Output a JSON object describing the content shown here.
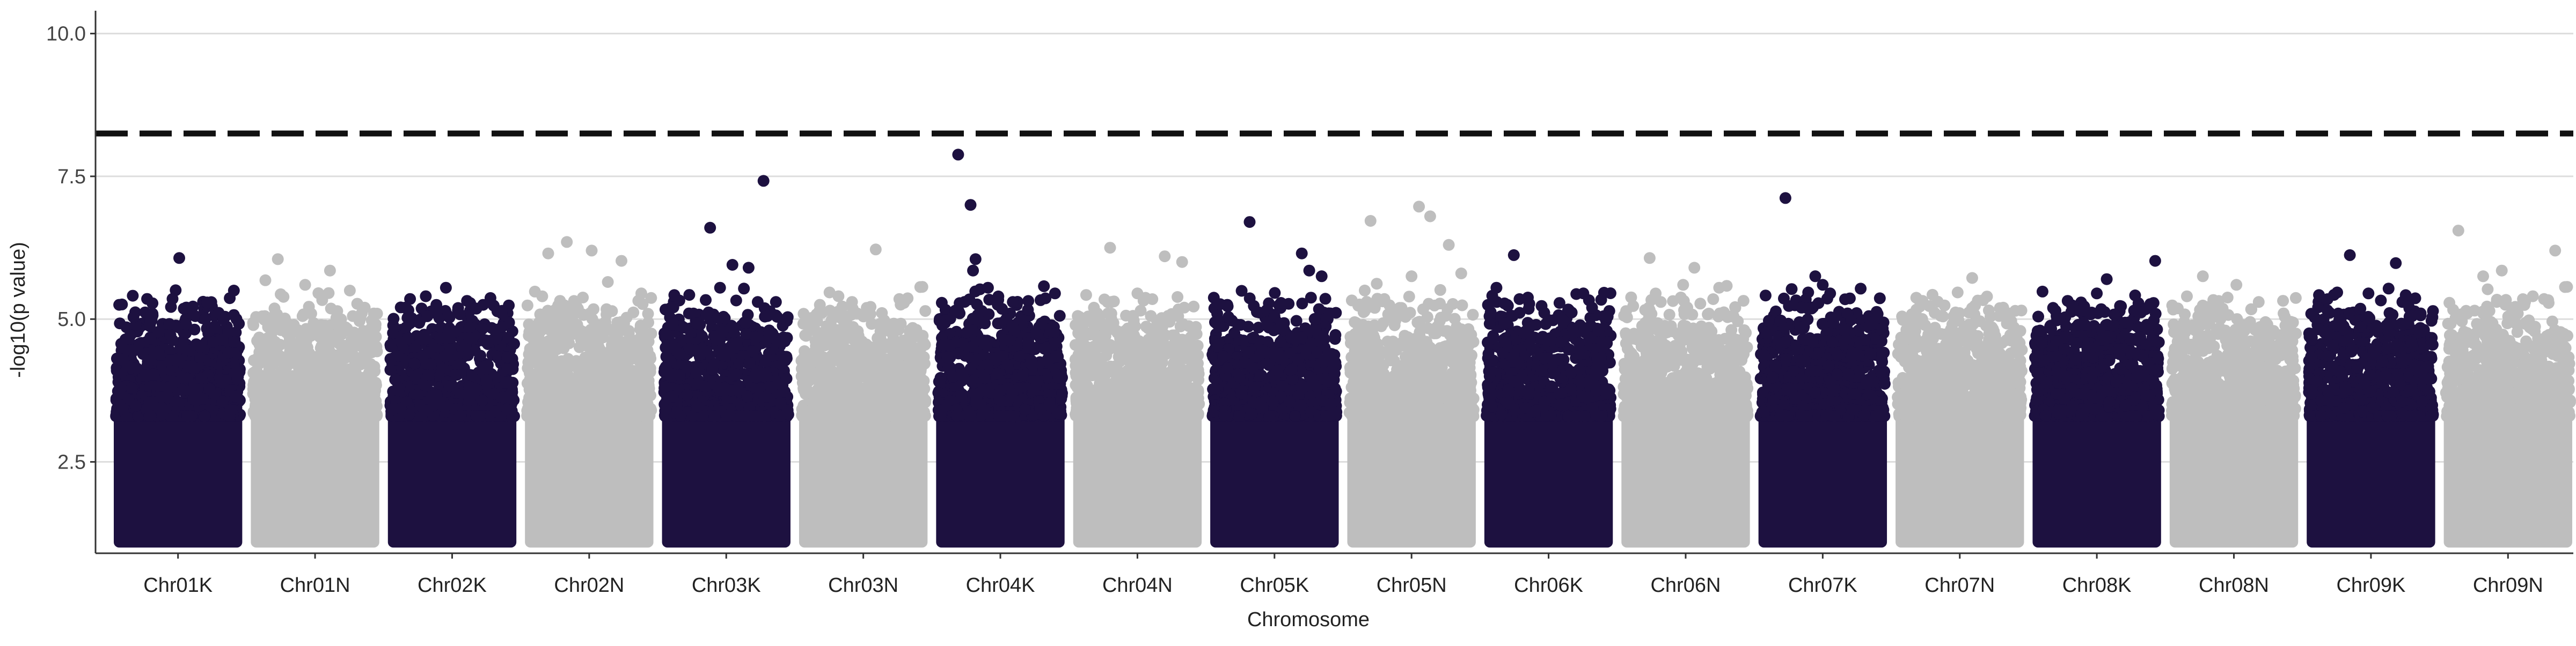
{
  "chart_data": {
    "type": "scatter",
    "subtype": "manhattan",
    "xlabel": "Chromosome",
    "ylabel": "-log10(p value)",
    "ylim": [
      0.9,
      10.4
    ],
    "y_ticks": [
      2.5,
      5.0,
      7.5,
      10.0
    ],
    "y_tick_labels": [
      "2.5",
      "5.0",
      "7.5",
      "10.0"
    ],
    "grid": "horizontal major lines only",
    "threshold": 8.25,
    "threshold_style": "dashed",
    "colors": {
      "odd": "#1d1140",
      "even": "#bebebe",
      "threshold": "#111111",
      "grid": "#dddddd"
    },
    "series": [
      {
        "name": "Chr01K",
        "color_group": "odd",
        "peak": 6.07,
        "top_points": [
          [
            0.51,
            6.07
          ],
          [
            0.28,
            4.95
          ],
          [
            0.62,
            5.22
          ],
          [
            0.95,
            5.5
          ],
          [
            0.72,
            5.0
          ],
          [
            0.8,
            4.85
          ]
        ]
      },
      {
        "name": "Chr01N",
        "color_group": "even",
        "peak": 6.05,
        "top_points": [
          [
            0.2,
            6.05
          ],
          [
            0.62,
            5.85
          ],
          [
            0.1,
            5.68
          ],
          [
            0.42,
            5.6
          ],
          [
            0.78,
            5.5
          ],
          [
            0.9,
            5.2
          ]
        ]
      },
      {
        "name": "Chr02K",
        "color_group": "odd",
        "peak": 5.55,
        "top_points": [
          [
            0.45,
            5.55
          ],
          [
            0.62,
            5.32
          ],
          [
            0.75,
            5.25
          ],
          [
            0.12,
            5.2
          ],
          [
            0.3,
            5.05
          ],
          [
            0.9,
            5.1
          ]
        ]
      },
      {
        "name": "Chr02N",
        "color_group": "even",
        "peak": 6.35,
        "top_points": [
          [
            0.32,
            6.35
          ],
          [
            0.52,
            6.2
          ],
          [
            0.17,
            6.15
          ],
          [
            0.76,
            6.02
          ],
          [
            0.65,
            5.65
          ],
          [
            0.92,
            5.45
          ]
        ]
      },
      {
        "name": "Chr03K",
        "color_group": "odd",
        "peak": 7.42,
        "top_points": [
          [
            0.8,
            7.42
          ],
          [
            0.37,
            6.6
          ],
          [
            0.55,
            5.95
          ],
          [
            0.68,
            5.9
          ],
          [
            0.45,
            5.55
          ],
          [
            0.2,
            5.1
          ],
          [
            0.9,
            5.3
          ]
        ]
      },
      {
        "name": "Chr03N",
        "color_group": "even",
        "peak": 6.22,
        "top_points": [
          [
            0.6,
            6.22
          ],
          [
            0.3,
            5.4
          ],
          [
            0.15,
            5.25
          ],
          [
            0.85,
            5.35
          ],
          [
            0.45,
            5.1
          ]
        ]
      },
      {
        "name": "Chr04K",
        "color_group": "odd",
        "peak": 7.88,
        "top_points": [
          [
            0.16,
            7.88
          ],
          [
            0.26,
            7.0
          ],
          [
            0.3,
            6.05
          ],
          [
            0.28,
            5.85
          ],
          [
            0.4,
            5.55
          ],
          [
            0.6,
            5.3
          ],
          [
            0.94,
            5.45
          ]
        ]
      },
      {
        "name": "Chr04N",
        "color_group": "even",
        "peak": 6.25,
        "top_points": [
          [
            0.28,
            6.25
          ],
          [
            0.72,
            6.1
          ],
          [
            0.86,
            6.0
          ],
          [
            0.5,
            5.45
          ],
          [
            0.15,
            5.2
          ],
          [
            0.62,
            5.35
          ]
        ]
      },
      {
        "name": "Chr05K",
        "color_group": "odd",
        "peak": 6.7,
        "top_points": [
          [
            0.3,
            6.7
          ],
          [
            0.72,
            6.15
          ],
          [
            0.78,
            5.85
          ],
          [
            0.88,
            5.75
          ],
          [
            0.12,
            5.25
          ],
          [
            0.5,
            5.05
          ],
          [
            0.95,
            5.1
          ]
        ]
      },
      {
        "name": "Chr05N",
        "color_group": "even",
        "peak": 6.97,
        "top_points": [
          [
            0.56,
            6.97
          ],
          [
            0.65,
            6.8
          ],
          [
            0.17,
            6.72
          ],
          [
            0.8,
            6.3
          ],
          [
            0.5,
            5.75
          ],
          [
            0.22,
            5.62
          ],
          [
            0.9,
            5.8
          ]
        ]
      },
      {
        "name": "Chr06K",
        "color_group": "odd",
        "peak": 6.12,
        "top_points": [
          [
            0.22,
            6.12
          ],
          [
            0.08,
            5.55
          ],
          [
            0.78,
            5.45
          ],
          [
            0.85,
            5.2
          ],
          [
            0.4,
            4.9
          ],
          [
            0.6,
            4.6
          ]
        ]
      },
      {
        "name": "Chr06N",
        "color_group": "even",
        "peak": 6.07,
        "top_points": [
          [
            0.21,
            6.07
          ],
          [
            0.57,
            5.9
          ],
          [
            0.48,
            5.6
          ],
          [
            0.77,
            5.55
          ],
          [
            0.3,
            5.3
          ],
          [
            0.9,
            5.2
          ]
        ]
      },
      {
        "name": "Chr07K",
        "color_group": "odd",
        "peak": 7.12,
        "top_points": [
          [
            0.2,
            7.12
          ],
          [
            0.44,
            5.75
          ],
          [
            0.5,
            5.6
          ],
          [
            0.56,
            5.45
          ],
          [
            0.33,
            5.2
          ],
          [
            0.7,
            5.1
          ],
          [
            0.88,
            4.9
          ]
        ]
      },
      {
        "name": "Chr07N",
        "color_group": "even",
        "peak": 5.72,
        "top_points": [
          [
            0.6,
            5.72
          ],
          [
            0.2,
            5.32
          ],
          [
            0.85,
            5.2
          ],
          [
            0.45,
            5.05
          ],
          [
            0.3,
            4.85
          ]
        ]
      },
      {
        "name": "Chr08K",
        "color_group": "odd",
        "peak": 6.02,
        "top_points": [
          [
            0.97,
            6.02
          ],
          [
            0.58,
            5.7
          ],
          [
            0.5,
            5.45
          ],
          [
            0.8,
            5.15
          ],
          [
            0.2,
            5.0
          ],
          [
            0.35,
            4.9
          ]
        ]
      },
      {
        "name": "Chr08N",
        "color_group": "even",
        "peak": 5.75,
        "top_points": [
          [
            0.25,
            5.75
          ],
          [
            0.52,
            5.6
          ],
          [
            0.7,
            5.3
          ],
          [
            0.9,
            5.1
          ],
          [
            0.1,
            4.95
          ]
        ]
      },
      {
        "name": "Chr09K",
        "color_group": "odd",
        "peak": 6.12,
        "top_points": [
          [
            0.33,
            6.12
          ],
          [
            0.7,
            5.98
          ],
          [
            0.48,
            5.45
          ],
          [
            0.78,
            5.42
          ],
          [
            0.15,
            5.35
          ],
          [
            0.9,
            5.1
          ]
        ]
      },
      {
        "name": "Chr09N",
        "color_group": "even",
        "peak": 6.55,
        "top_points": [
          [
            0.1,
            6.55
          ],
          [
            0.88,
            6.2
          ],
          [
            0.3,
            5.75
          ],
          [
            0.45,
            5.85
          ],
          [
            0.7,
            5.4
          ],
          [
            0.62,
            5.35
          ]
        ]
      }
    ]
  }
}
